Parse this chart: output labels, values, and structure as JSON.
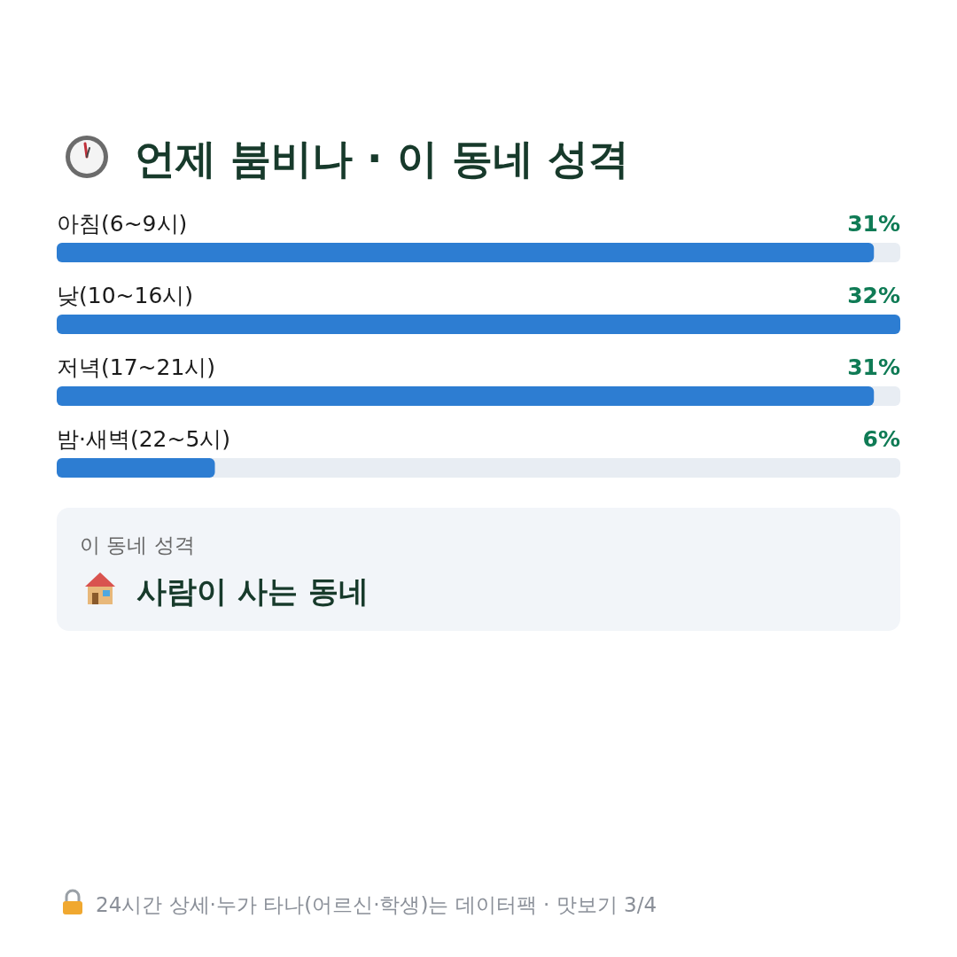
{
  "chart_data": {
    "type": "bar",
    "orientation": "horizontal",
    "title": "언제 붐비나 · 이 동네 성격",
    "categories": [
      "아침(6~9시)",
      "낮(10~16시)",
      "저녁(17~21시)",
      "밤·새벽(22~5시)"
    ],
    "values": [
      31,
      32,
      31,
      6
    ],
    "color": "#2d7dd2",
    "value_labels": [
      "31%",
      "32%",
      "31%",
      "6%"
    ],
    "annotations": [
      "이 동네 성격",
      "사람이 사는 동네",
      "24시간 상세·누가 타나(어르신·학생)는 데이터팩 · 맛보기 3/4"
    ]
  }
}
